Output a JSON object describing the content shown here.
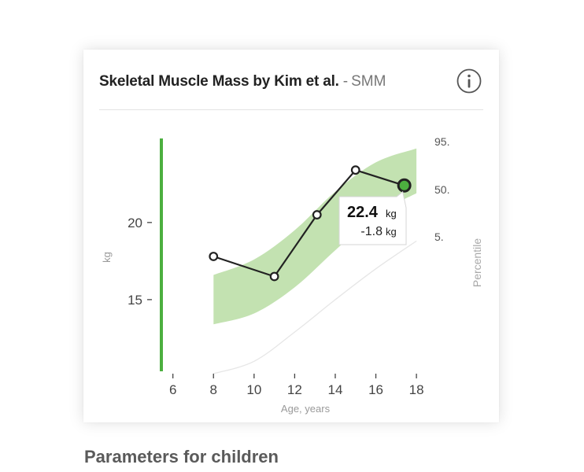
{
  "card": {
    "title": "Skeletal Muscle Mass by Kim et al.",
    "separator": "-",
    "subtitle": "SMM",
    "info_icon": "info-circle-icon"
  },
  "section": {
    "heading": "Parameters for children"
  },
  "colors": {
    "band": "#c3e2b1",
    "line": "#222222",
    "current_point": "#4caf3f",
    "axis_bar": "#4caf3f",
    "p5_line": "#e6e6e6"
  },
  "chart_data": {
    "type": "line",
    "xlabel": "Age, years",
    "ylabel": "kg",
    "right_label": "Percentile",
    "xlim": [
      4.5,
      18.5
    ],
    "ylim": [
      10.2,
      25.5
    ],
    "x_ticks": [
      6,
      8,
      10,
      12,
      14,
      16,
      18
    ],
    "y_ticks": [
      15,
      20
    ],
    "series": [
      {
        "points": [
          {
            "x": 8,
            "y": 17.8
          },
          {
            "x": 11,
            "y": 16.5
          },
          {
            "x": 13.1,
            "y": 20.5
          },
          {
            "x": 15,
            "y": 23.4
          },
          {
            "x": 17.4,
            "y": 22.4
          }
        ]
      }
    ],
    "percentiles": {
      "p95": [
        {
          "x": 8,
          "y": 16.6
        },
        {
          "x": 10,
          "y": 17.6
        },
        {
          "x": 12,
          "y": 19.5
        },
        {
          "x": 14,
          "y": 22.0
        },
        {
          "x": 16,
          "y": 23.9
        },
        {
          "x": 18,
          "y": 24.8
        }
      ],
      "p50_end": {
        "x": 18,
        "y": 21.9
      },
      "p5": [
        {
          "x": 8,
          "y": 13.4
        },
        {
          "x": 10,
          "y": 14.1
        },
        {
          "x": 12,
          "y": 15.8
        },
        {
          "x": 14,
          "y": 18.2
        },
        {
          "x": 16,
          "y": 20.5
        },
        {
          "x": 18,
          "y": 21.9
        }
      ],
      "p5_line": [
        {
          "x": 8,
          "y": 10.2
        },
        {
          "x": 10,
          "y": 11.0
        },
        {
          "x": 12,
          "y": 12.9
        },
        {
          "x": 14,
          "y": 15.0
        },
        {
          "x": 16,
          "y": 17.0
        },
        {
          "x": 18,
          "y": 18.8
        }
      ]
    },
    "percentile_labels": [
      "95.",
      "50.",
      "5."
    ],
    "tooltip": {
      "value": "22.4",
      "unit": "kg",
      "delta": "-1.8",
      "delta_unit": "kg"
    }
  }
}
